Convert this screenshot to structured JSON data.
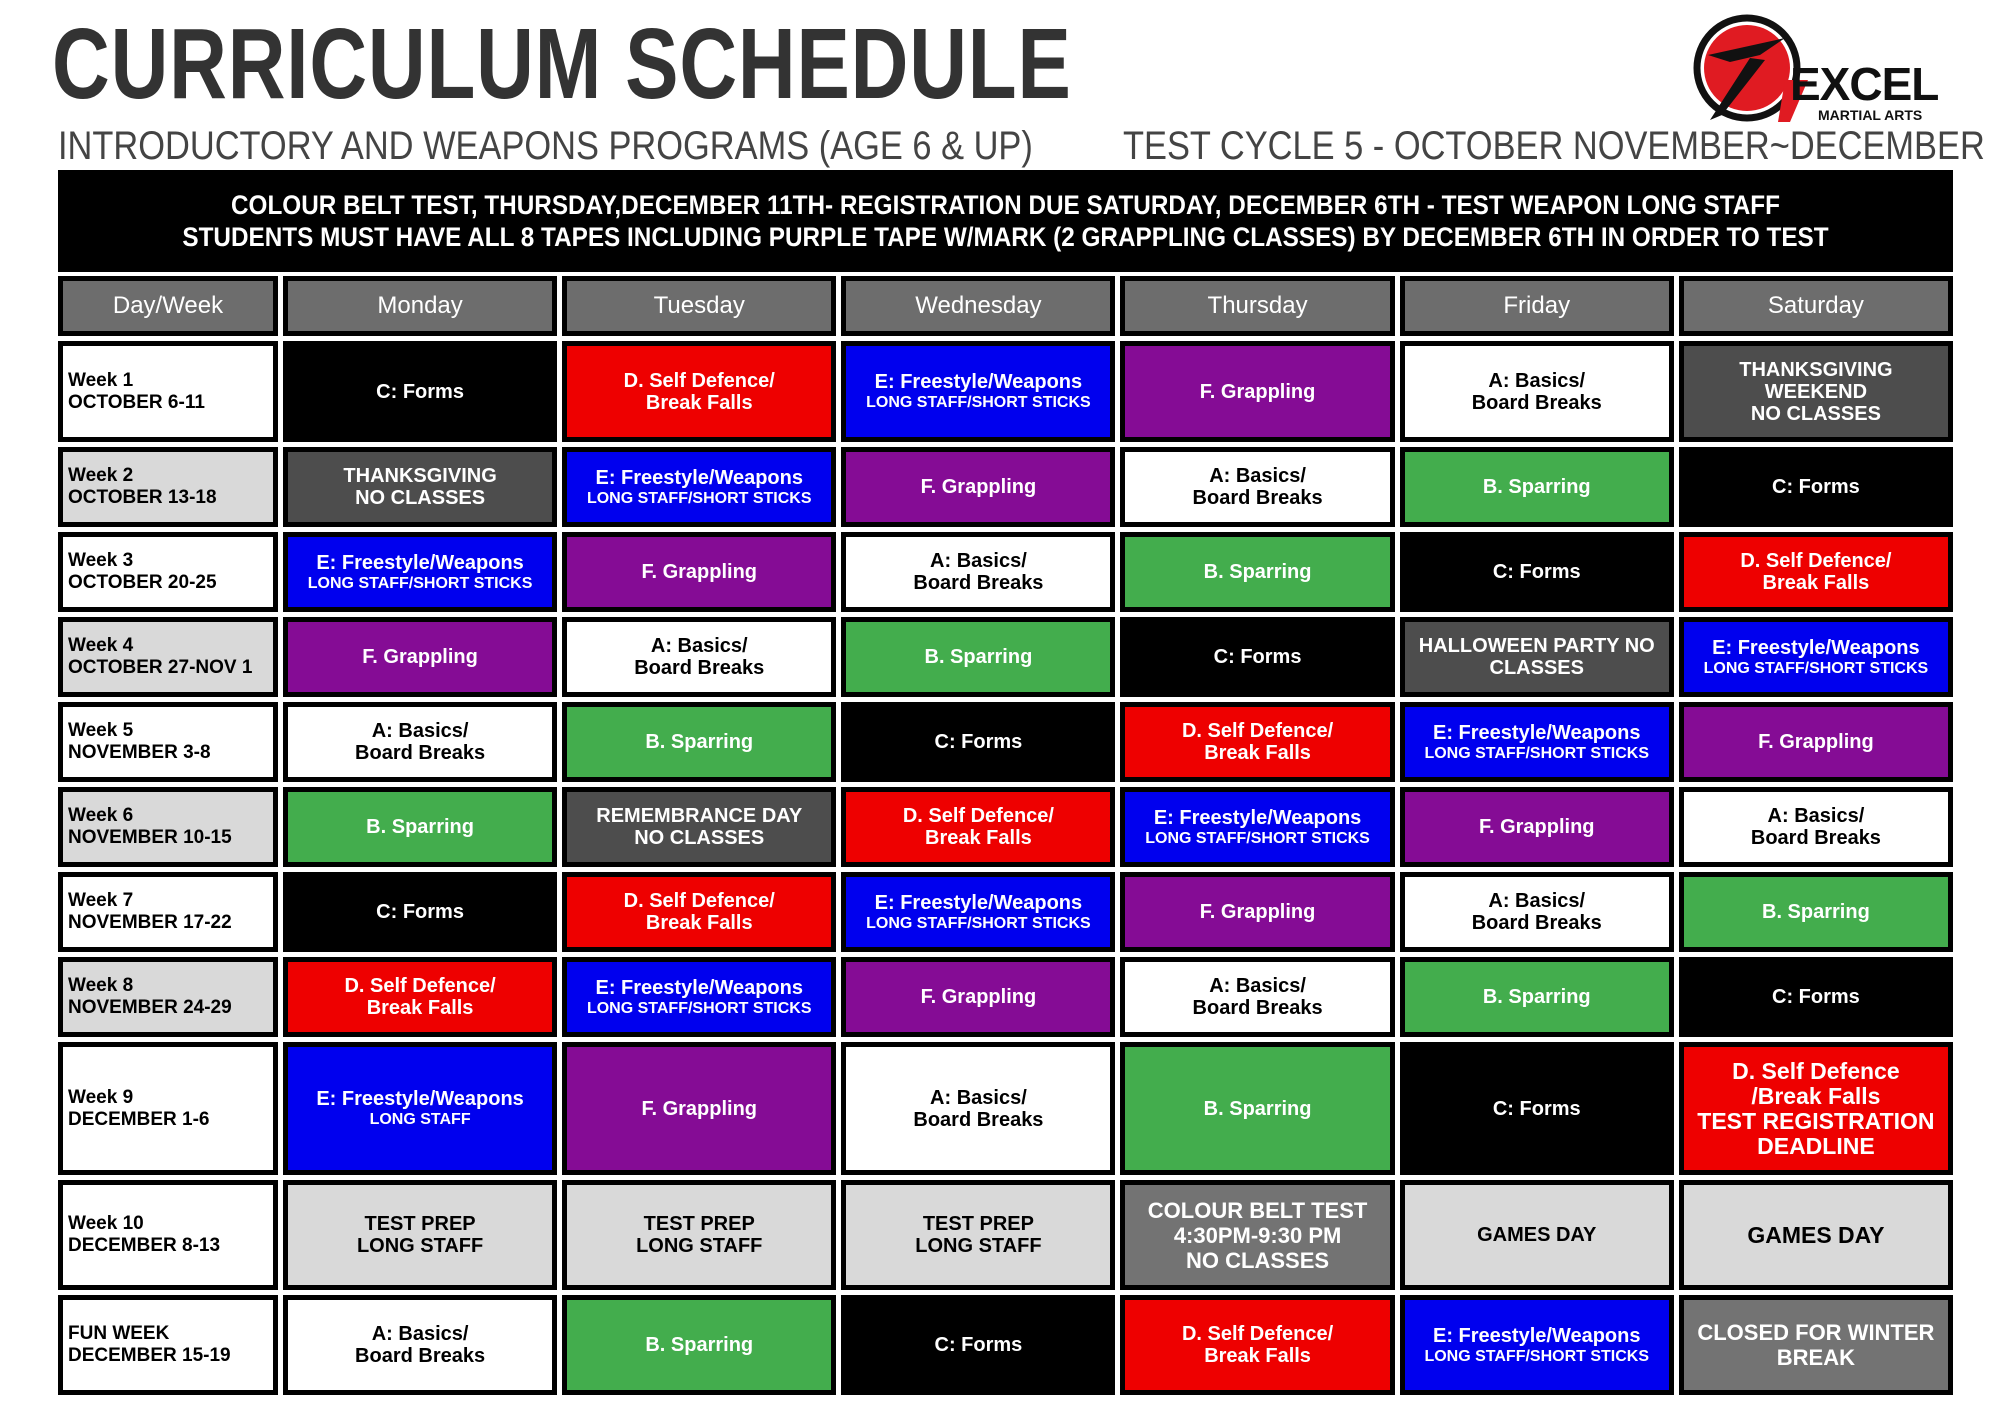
{
  "header": {
    "title": "CURRICULUM SCHEDULE",
    "subtitle_left": "INTRODUCTORY AND WEAPONS PROGRAMS (AGE 6 & UP)",
    "subtitle_right": "TEST CYCLE 5 - OCTOBER NOVEMBER~DECEMBER",
    "logo": {
      "name": "EXCEL",
      "tagline": "MARTIAL ARTS",
      "colors": {
        "red": "#e01b22",
        "black": "#111111"
      }
    }
  },
  "banner": {
    "line1": "COLOUR BELT TEST, THURSDAY,DECEMBER 11TH- REGISTRATION DUE SATURDAY, DECEMBER 6TH - TEST WEAPON LONG STAFF",
    "line2": "STUDENTS MUST HAVE ALL 8 TAPES INCLUDING PURPLE TAPE W/MARK (2 GRAPPLING CLASSES)  BY DECEMBER 6TH IN ORDER TO TEST"
  },
  "colors": {
    "white": "#ffffff",
    "black": "#000000",
    "red": "#ee0000",
    "blue": "#0000ee",
    "purple": "#850c95",
    "green": "#43ad4d",
    "darkgrey": "#4d4d4d",
    "midgrey": "#737373",
    "lightgrey": "#d9d9d9"
  },
  "table": {
    "columns": [
      "Day/Week",
      "Monday",
      "Tuesday",
      "Wednesday",
      "Thursday",
      "Friday",
      "Saturday"
    ],
    "rows": [
      {
        "week": [
          "Week 1",
          "OCTOBER 6-11"
        ],
        "bg": "white",
        "cells": [
          {
            "lines": [
              "C: Forms"
            ],
            "color": "black"
          },
          {
            "lines": [
              "D. Self Defence/",
              "Break Falls"
            ],
            "color": "red"
          },
          {
            "lines": [
              "E: Freestyle/Weapons"
            ],
            "sub": "LONG STAFF/SHORT STICKS",
            "color": "blue"
          },
          {
            "lines": [
              "F. Grappling"
            ],
            "color": "purple"
          },
          {
            "lines": [
              "A: Basics/",
              "Board Breaks"
            ],
            "color": "white"
          },
          {
            "lines": [
              "THANKSGIVING",
              "WEEKEND",
              "NO CLASSES"
            ],
            "color": "darkgrey"
          }
        ]
      },
      {
        "week": [
          "Week 2",
          "OCTOBER 13-18"
        ],
        "bg": "lightgrey",
        "cells": [
          {
            "lines": [
              "THANKSGIVING",
              "NO CLASSES"
            ],
            "color": "darkgrey"
          },
          {
            "lines": [
              "E: Freestyle/Weapons"
            ],
            "sub": "LONG STAFF/SHORT STICKS",
            "color": "blue"
          },
          {
            "lines": [
              "F. Grappling"
            ],
            "color": "purple"
          },
          {
            "lines": [
              "A: Basics/",
              "Board Breaks"
            ],
            "color": "white"
          },
          {
            "lines": [
              "B. Sparring"
            ],
            "color": "green"
          },
          {
            "lines": [
              "C: Forms"
            ],
            "color": "black"
          }
        ]
      },
      {
        "week": [
          "Week 3",
          "OCTOBER 20-25"
        ],
        "bg": "white",
        "cells": [
          {
            "lines": [
              "E: Freestyle/Weapons"
            ],
            "sub": "LONG STAFF/SHORT STICKS",
            "color": "blue"
          },
          {
            "lines": [
              "F. Grappling"
            ],
            "color": "purple"
          },
          {
            "lines": [
              "A: Basics/",
              "Board Breaks"
            ],
            "color": "white"
          },
          {
            "lines": [
              "B. Sparring"
            ],
            "color": "green"
          },
          {
            "lines": [
              "C: Forms"
            ],
            "color": "black"
          },
          {
            "lines": [
              "D. Self Defence/",
              "Break Falls"
            ],
            "color": "red"
          }
        ]
      },
      {
        "week": [
          "Week 4",
          "OCTOBER 27-NOV 1"
        ],
        "bg": "lightgrey",
        "cells": [
          {
            "lines": [
              "F. Grappling"
            ],
            "color": "purple"
          },
          {
            "lines": [
              "A: Basics/",
              "Board Breaks"
            ],
            "color": "white"
          },
          {
            "lines": [
              "B. Sparring"
            ],
            "color": "green"
          },
          {
            "lines": [
              "C: Forms"
            ],
            "color": "black"
          },
          {
            "lines": [
              "HALLOWEEN PARTY NO",
              "CLASSES"
            ],
            "color": "darkgrey"
          },
          {
            "lines": [
              "E: Freestyle/Weapons"
            ],
            "sub": "LONG STAFF/SHORT STICKS",
            "color": "blue"
          }
        ]
      },
      {
        "week": [
          "Week 5",
          "NOVEMBER 3-8"
        ],
        "bg": "white",
        "cells": [
          {
            "lines": [
              "A: Basics/",
              "Board Breaks"
            ],
            "color": "white"
          },
          {
            "lines": [
              "B. Sparring"
            ],
            "color": "green"
          },
          {
            "lines": [
              "C: Forms"
            ],
            "color": "black"
          },
          {
            "lines": [
              "D. Self Defence/",
              "Break Falls"
            ],
            "color": "red"
          },
          {
            "lines": [
              "E: Freestyle/Weapons"
            ],
            "sub": "LONG STAFF/SHORT STICKS",
            "color": "blue"
          },
          {
            "lines": [
              "F. Grappling"
            ],
            "color": "purple"
          }
        ]
      },
      {
        "week": [
          "Week 6",
          "NOVEMBER 10-15"
        ],
        "bg": "lightgrey",
        "cells": [
          {
            "lines": [
              "B. Sparring"
            ],
            "color": "green"
          },
          {
            "lines": [
              "REMEMBRANCE DAY",
              "NO CLASSES"
            ],
            "color": "darkgrey"
          },
          {
            "lines": [
              "D. Self Defence/",
              "Break Falls"
            ],
            "color": "red"
          },
          {
            "lines": [
              "E: Freestyle/Weapons"
            ],
            "sub": "LONG STAFF/SHORT STICKS",
            "color": "blue"
          },
          {
            "lines": [
              "F. Grappling"
            ],
            "color": "purple"
          },
          {
            "lines": [
              "A: Basics/",
              "Board Breaks"
            ],
            "color": "white"
          }
        ]
      },
      {
        "week": [
          "Week 7",
          "NOVEMBER 17-22"
        ],
        "bg": "white",
        "cells": [
          {
            "lines": [
              "C: Forms"
            ],
            "color": "black"
          },
          {
            "lines": [
              "D. Self Defence/",
              "Break Falls"
            ],
            "color": "red"
          },
          {
            "lines": [
              "E: Freestyle/Weapons"
            ],
            "sub": "LONG STAFF/SHORT STICKS",
            "color": "blue"
          },
          {
            "lines": [
              "F. Grappling"
            ],
            "color": "purple"
          },
          {
            "lines": [
              "A: Basics/",
              "Board Breaks"
            ],
            "color": "white"
          },
          {
            "lines": [
              "B. Sparring"
            ],
            "color": "green"
          }
        ]
      },
      {
        "week": [
          "Week 8",
          "NOVEMBER 24-29"
        ],
        "bg": "lightgrey",
        "cells": [
          {
            "lines": [
              "D. Self Defence/",
              "Break Falls"
            ],
            "color": "red"
          },
          {
            "lines": [
              "E: Freestyle/Weapons"
            ],
            "sub": "LONG STAFF/SHORT STICKS",
            "color": "blue"
          },
          {
            "lines": [
              "F. Grappling"
            ],
            "color": "purple"
          },
          {
            "lines": [
              "A: Basics/",
              "Board Breaks"
            ],
            "color": "white"
          },
          {
            "lines": [
              "B. Sparring"
            ],
            "color": "green"
          },
          {
            "lines": [
              "C: Forms"
            ],
            "color": "black"
          }
        ]
      },
      {
        "week": [
          "Week 9",
          "DECEMBER 1-6"
        ],
        "bg": "white",
        "cells": [
          {
            "lines": [
              "E: Freestyle/Weapons"
            ],
            "sub": "LONG STAFF",
            "color": "blue"
          },
          {
            "lines": [
              "F. Grappling"
            ],
            "color": "purple"
          },
          {
            "lines": [
              "A: Basics/",
              "Board Breaks"
            ],
            "color": "white"
          },
          {
            "lines": [
              "B. Sparring"
            ],
            "color": "green"
          },
          {
            "lines": [
              "C: Forms"
            ],
            "color": "black"
          },
          {
            "lines": [
              "D. Self Defence",
              "/Break Falls",
              "TEST REGISTRATION",
              "DEADLINE"
            ],
            "color": "red",
            "big": true
          }
        ]
      },
      {
        "week": [
          "Week 10",
          "DECEMBER 8-13"
        ],
        "bg": "white",
        "cells": [
          {
            "lines": [
              "TEST PREP",
              "LONG STAFF"
            ],
            "color": "lightgrey"
          },
          {
            "lines": [
              "TEST PREP",
              "LONG STAFF"
            ],
            "color": "lightgrey"
          },
          {
            "lines": [
              "TEST PREP",
              "LONG STAFF"
            ],
            "color": "lightgrey"
          },
          {
            "lines": [
              "COLOUR BELT TEST",
              "4:30PM-9:30 PM",
              "NO CLASSES"
            ],
            "color": "midgrey"
          },
          {
            "lines": [
              "GAMES DAY"
            ],
            "color": "lightgrey"
          },
          {
            "lines": [
              "GAMES DAY"
            ],
            "color": "lightgrey",
            "big": true
          }
        ]
      },
      {
        "week": [
          "FUN WEEK",
          "DECEMBER 15-19"
        ],
        "bg": "white",
        "cells": [
          {
            "lines": [
              "A: Basics/",
              "Board Breaks"
            ],
            "color": "white"
          },
          {
            "lines": [
              "B. Sparring"
            ],
            "color": "green"
          },
          {
            "lines": [
              "C: Forms"
            ],
            "color": "black"
          },
          {
            "lines": [
              "D. Self Defence/",
              "Break Falls"
            ],
            "color": "red"
          },
          {
            "lines": [
              "E: Freestyle/Weapons"
            ],
            "sub": "LONG STAFF/SHORT STICKS",
            "color": "blue"
          },
          {
            "lines": [
              "CLOSED FOR WINTER",
              "BREAK"
            ],
            "color": "midgrey"
          }
        ]
      }
    ]
  }
}
